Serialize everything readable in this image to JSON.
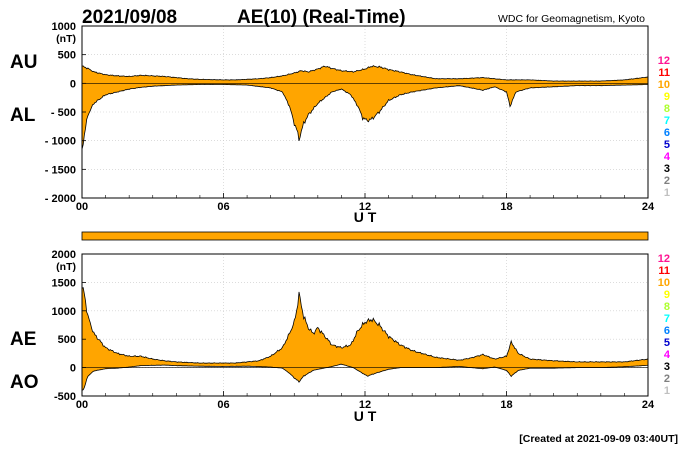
{
  "header": {
    "date": "2021/09/08",
    "title": "AE(10) (Real-Time)",
    "source": "WDC for Geomagnetism, Kyoto"
  },
  "footer": {
    "created": "[Created at 2021-09-09 03:40UT]"
  },
  "colors": {
    "fill": "#ffa500",
    "edge": "#000000",
    "axis": "#000000",
    "grid": "#c0c0c0"
  },
  "station_counts": [
    {
      "label": "12",
      "color": "#ff1493"
    },
    {
      "label": "11",
      "color": "#ff0000"
    },
    {
      "label": "10",
      "color": "#ffa500"
    },
    {
      "label": "9",
      "color": "#ffff00"
    },
    {
      "label": "8",
      "color": "#adff2f"
    },
    {
      "label": "7",
      "color": "#00ffff"
    },
    {
      "label": "6",
      "color": "#0080ff"
    },
    {
      "label": "5",
      "color": "#0000cd"
    },
    {
      "label": "4",
      "color": "#ff00ff"
    },
    {
      "label": "3",
      "color": "#000000"
    },
    {
      "label": "2",
      "color": "#808080"
    },
    {
      "label": "1",
      "color": "#c0c0c0"
    }
  ],
  "chart_data": [
    {
      "type": "area",
      "panel": "AU/AL",
      "ylabel": "(nT)",
      "upper_label": "AU",
      "lower_label": "AL",
      "xlabel": "U T",
      "xlim": [
        0,
        24
      ],
      "ylim": [
        -2000,
        1000
      ],
      "yticks": [
        {
          "v": 1000,
          "label": "1000"
        },
        {
          "v": 500,
          "label": "500"
        },
        {
          "v": 0,
          "label": "0"
        },
        {
          "v": -500,
          "label": "- 500"
        },
        {
          "v": -1000,
          "label": "- 1000"
        },
        {
          "v": -1500,
          "label": "- 1500"
        },
        {
          "v": -2000,
          "label": "- 2000"
        }
      ],
      "xticks": [
        {
          "v": 0,
          "label": "00"
        },
        {
          "v": 6,
          "label": "06"
        },
        {
          "v": 12,
          "label": "12"
        },
        {
          "v": 18,
          "label": "18"
        },
        {
          "v": 24,
          "label": "24"
        }
      ],
      "grid": true,
      "series": [
        {
          "name": "AU",
          "points": [
            [
              0,
              300
            ],
            [
              0.25,
              260
            ],
            [
              0.5,
              200
            ],
            [
              1,
              150
            ],
            [
              1.5,
              130
            ],
            [
              2,
              120
            ],
            [
              2.5,
              140
            ],
            [
              3,
              130
            ],
            [
              3.5,
              120
            ],
            [
              4,
              100
            ],
            [
              4.5,
              80
            ],
            [
              5,
              70
            ],
            [
              6,
              60
            ],
            [
              6.5,
              60
            ],
            [
              7,
              70
            ],
            [
              7.5,
              80
            ],
            [
              8,
              100
            ],
            [
              8.5,
              130
            ],
            [
              9,
              180
            ],
            [
              9.3,
              220
            ],
            [
              9.6,
              200
            ],
            [
              10,
              250
            ],
            [
              10.3,
              300
            ],
            [
              10.6,
              260
            ],
            [
              11,
              220
            ],
            [
              11.5,
              200
            ],
            [
              12,
              250
            ],
            [
              12.3,
              300
            ],
            [
              12.7,
              280
            ],
            [
              13,
              240
            ],
            [
              13.5,
              200
            ],
            [
              14,
              150
            ],
            [
              15,
              80
            ],
            [
              16,
              80
            ],
            [
              16.5,
              90
            ],
            [
              17,
              100
            ],
            [
              17.5,
              80
            ],
            [
              18,
              60
            ],
            [
              19,
              60
            ],
            [
              20,
              40
            ],
            [
              21,
              40
            ],
            [
              22,
              40
            ],
            [
              23,
              60
            ],
            [
              24,
              110
            ]
          ]
        },
        {
          "name": "AL",
          "points": [
            [
              0,
              -1150
            ],
            [
              0.1,
              -900
            ],
            [
              0.25,
              -550
            ],
            [
              0.5,
              -350
            ],
            [
              1,
              -200
            ],
            [
              1.5,
              -150
            ],
            [
              2,
              -100
            ],
            [
              2.5,
              -70
            ],
            [
              3,
              -50
            ],
            [
              4,
              -30
            ],
            [
              5,
              -20
            ],
            [
              6,
              -20
            ],
            [
              7,
              -30
            ],
            [
              8,
              -80
            ],
            [
              8.5,
              -150
            ],
            [
              8.8,
              -400
            ],
            [
              9,
              -700
            ],
            [
              9.1,
              -800
            ],
            [
              9.2,
              -980
            ],
            [
              9.4,
              -700
            ],
            [
              9.6,
              -550
            ],
            [
              9.8,
              -450
            ],
            [
              10,
              -350
            ],
            [
              10.3,
              -250
            ],
            [
              10.6,
              -150
            ],
            [
              11,
              -100
            ],
            [
              11.4,
              -200
            ],
            [
              11.7,
              -400
            ],
            [
              11.9,
              -600
            ],
            [
              12.1,
              -650
            ],
            [
              12.3,
              -620
            ],
            [
              12.6,
              -500
            ],
            [
              13,
              -300
            ],
            [
              13.5,
              -200
            ],
            [
              14,
              -150
            ],
            [
              15,
              -80
            ],
            [
              16,
              -40
            ],
            [
              16.5,
              -80
            ],
            [
              17,
              -120
            ],
            [
              17.5,
              -60
            ],
            [
              18,
              -150
            ],
            [
              18.15,
              -400
            ],
            [
              18.4,
              -150
            ],
            [
              19,
              -80
            ],
            [
              20,
              -60
            ],
            [
              21,
              -40
            ],
            [
              22,
              -40
            ],
            [
              23,
              -30
            ],
            [
              24,
              -20
            ]
          ]
        }
      ]
    },
    {
      "type": "area",
      "panel": "AE/AO",
      "ylabel": "(nT)",
      "upper_label": "AE",
      "lower_label": "AO",
      "xlabel": "U T",
      "xlim": [
        0,
        24
      ],
      "ylim": [
        -500,
        2000
      ],
      "yticks": [
        {
          "v": 2000,
          "label": "2000"
        },
        {
          "v": 1500,
          "label": "1500"
        },
        {
          "v": 1000,
          "label": "1000"
        },
        {
          "v": 500,
          "label": "500"
        },
        {
          "v": 0,
          "label": "0"
        },
        {
          "v": -500,
          "label": "-500"
        }
      ],
      "xticks": [
        {
          "v": 0,
          "label": "00"
        },
        {
          "v": 6,
          "label": "06"
        },
        {
          "v": 12,
          "label": "12"
        },
        {
          "v": 18,
          "label": "18"
        },
        {
          "v": 24,
          "label": "24"
        }
      ],
      "grid": true,
      "series": [
        {
          "name": "AE",
          "points": [
            [
              0,
              1400
            ],
            [
              0.1,
              1300
            ],
            [
              0.25,
              900
            ],
            [
              0.5,
              600
            ],
            [
              1,
              350
            ],
            [
              1.5,
              250
            ],
            [
              2,
              200
            ],
            [
              2.5,
              200
            ],
            [
              3,
              150
            ],
            [
              3.5,
              120
            ],
            [
              4,
              100
            ],
            [
              5,
              80
            ],
            [
              6,
              80
            ],
            [
              6.5,
              80
            ],
            [
              7,
              100
            ],
            [
              7.5,
              120
            ],
            [
              8,
              200
            ],
            [
              8.5,
              350
            ],
            [
              8.8,
              600
            ],
            [
              9,
              800
            ],
            [
              9.1,
              1000
            ],
            [
              9.2,
              1300
            ],
            [
              9.4,
              900
            ],
            [
              9.6,
              700
            ],
            [
              9.8,
              600
            ],
            [
              10,
              700
            ],
            [
              10.3,
              550
            ],
            [
              10.6,
              400
            ],
            [
              11,
              350
            ],
            [
              11.4,
              400
            ],
            [
              11.7,
              650
            ],
            [
              12,
              800
            ],
            [
              12.3,
              850
            ],
            [
              12.6,
              750
            ],
            [
              13,
              550
            ],
            [
              13.5,
              400
            ],
            [
              14,
              300
            ],
            [
              15,
              180
            ],
            [
              16,
              130
            ],
            [
              16.5,
              170
            ],
            [
              17,
              230
            ],
            [
              17.5,
              150
            ],
            [
              18,
              200
            ],
            [
              18.2,
              450
            ],
            [
              18.5,
              250
            ],
            [
              19,
              150
            ],
            [
              20,
              120
            ],
            [
              21,
              100
            ],
            [
              22,
              100
            ],
            [
              23,
              100
            ],
            [
              24,
              150
            ]
          ]
        },
        {
          "name": "AO",
          "points": [
            [
              0,
              -400
            ],
            [
              0.1,
              -350
            ],
            [
              0.25,
              -150
            ],
            [
              0.5,
              -60
            ],
            [
              1,
              -20
            ],
            [
              1.5,
              -10
            ],
            [
              2,
              10
            ],
            [
              2.5,
              35
            ],
            [
              3,
              40
            ],
            [
              3.5,
              45
            ],
            [
              4,
              35
            ],
            [
              5,
              25
            ],
            [
              6,
              20
            ],
            [
              7,
              25
            ],
            [
              8,
              10
            ],
            [
              8.5,
              -10
            ],
            [
              8.8,
              -100
            ],
            [
              9,
              -180
            ],
            [
              9.2,
              -250
            ],
            [
              9.4,
              -150
            ],
            [
              9.6,
              -100
            ],
            [
              9.8,
              -50
            ],
            [
              10,
              -30
            ],
            [
              10.5,
              10
            ],
            [
              11,
              60
            ],
            [
              11.5,
              0
            ],
            [
              11.9,
              -100
            ],
            [
              12.1,
              -150
            ],
            [
              12.3,
              -120
            ],
            [
              12.6,
              -80
            ],
            [
              13,
              -30
            ],
            [
              13.5,
              0
            ],
            [
              14,
              0
            ],
            [
              15,
              0
            ],
            [
              16,
              20
            ],
            [
              16.5,
              0
            ],
            [
              17,
              -20
            ],
            [
              17.5,
              10
            ],
            [
              18,
              -50
            ],
            [
              18.2,
              -150
            ],
            [
              18.5,
              -50
            ],
            [
              19,
              -10
            ],
            [
              20,
              -10
            ],
            [
              21,
              0
            ],
            [
              22,
              0
            ],
            [
              23,
              15
            ],
            [
              24,
              40
            ]
          ]
        }
      ]
    }
  ]
}
